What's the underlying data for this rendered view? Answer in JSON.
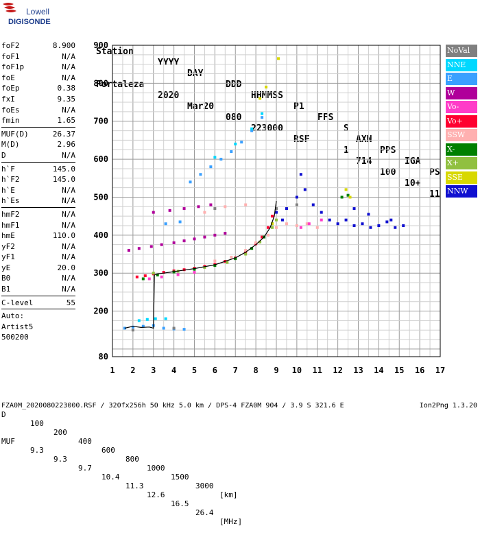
{
  "logo": {
    "line1": "Lowell",
    "line2": "DIGISONDE"
  },
  "header": {
    "labels": [
      "Station",
      "YYYY",
      "DAY",
      "DDD",
      "HHMMSS",
      "P1",
      "FFS",
      "S",
      "AXN",
      "PPS",
      "IGA",
      "PS"
    ],
    "values": [
      "Fortaleza",
      "2020",
      "Mar20",
      "080",
      "223000",
      "RSF",
      "1",
      "714",
      "100",
      "10+",
      "11"
    ]
  },
  "params": {
    "group1": [
      {
        "label": "foF2",
        "value": "8.900"
      },
      {
        "label": "foF1",
        "value": "N/A"
      },
      {
        "label": "foF1p",
        "value": "N/A"
      },
      {
        "label": "foE",
        "value": "N/A"
      },
      {
        "label": "foEp",
        "value": "0.38"
      },
      {
        "label": "fxI",
        "value": "9.35"
      },
      {
        "label": "foEs",
        "value": "N/A"
      },
      {
        "label": "fmin",
        "value": "1.65"
      }
    ],
    "group2": [
      {
        "label": "MUF(D)",
        "value": "26.37"
      },
      {
        "label": "M(D)",
        "value": "2.96"
      },
      {
        "label": "D",
        "value": "N/A"
      }
    ],
    "group3": [
      {
        "label": "h`F",
        "value": "145.0"
      },
      {
        "label": "h`F2",
        "value": "145.0"
      },
      {
        "label": "h`E",
        "value": "N/A"
      },
      {
        "label": "h`Es",
        "value": "N/A"
      }
    ],
    "group4": [
      {
        "label": "hmF2",
        "value": "N/A"
      },
      {
        "label": "hmF1",
        "value": "N/A"
      },
      {
        "label": "hmE",
        "value": "110.0"
      },
      {
        "label": "yF2",
        "value": "N/A"
      },
      {
        "label": "yF1",
        "value": "N/A"
      },
      {
        "label": "yE",
        "value": "20.0"
      },
      {
        "label": "B0",
        "value": "N/A"
      },
      {
        "label": "B1",
        "value": "N/A"
      }
    ],
    "clevel": {
      "label": "C-level",
      "value": "55"
    },
    "notes": [
      "Auto:",
      "Artist5",
      "500200"
    ]
  },
  "legend": [
    {
      "label": "NoVal",
      "color": "#808080"
    },
    {
      "label": "NNE",
      "color": "#00d8ff"
    },
    {
      "label": "E",
      "color": "#3aa0ff"
    },
    {
      "label": "W",
      "color": "#b0009a"
    },
    {
      "label": "Vo-",
      "color": "#ff3cc8"
    },
    {
      "label": "Vo+",
      "color": "#ff0030"
    },
    {
      "label": "SSW",
      "color": "#ffb0b0"
    },
    {
      "label": "X-",
      "color": "#008000"
    },
    {
      "label": "X+",
      "color": "#90c040"
    },
    {
      "label": "SSE",
      "color": "#d8d800"
    },
    {
      "label": "NNW",
      "color": "#1010d0"
    }
  ],
  "muf": {
    "d_label": "D",
    "d_values": [
      "100",
      "200",
      "400",
      "600",
      "800",
      "1000",
      "1500",
      "3000"
    ],
    "d_unit": "[km]",
    "muf_label": "MUF",
    "muf_values": [
      "9.3",
      "9.3",
      "9.7",
      "10.4",
      "11.3",
      "12.6",
      "16.5",
      "26.4"
    ],
    "muf_unit": "[MHz]"
  },
  "footer": {
    "left": "FZA0M_2020080223000.RSF / 320fx256h 50 kHz 5.0 km / DPS-4 FZA0M 904 / 3.9 S 321.6 E",
    "right": "Ion2Png 1.3.20"
  },
  "chart_data": {
    "type": "scatter",
    "xlim": [
      1,
      17
    ],
    "ylim": [
      80,
      900
    ],
    "x_ticks": [
      1,
      2,
      3,
      4,
      5,
      6,
      7,
      8,
      9,
      10,
      11,
      12,
      13,
      14,
      15,
      16,
      17
    ],
    "y_ticks": [
      80,
      200,
      300,
      400,
      500,
      600,
      700,
      800,
      900
    ],
    "grid": true,
    "series": [
      {
        "name": "Vo+",
        "color": "#ff0030",
        "x": [
          2.2,
          2.6,
          3.0,
          3.5,
          4.0,
          4.5,
          5.0,
          5.5,
          6.0,
          6.5,
          7.0,
          7.5,
          8.0,
          8.3,
          8.6,
          8.8
        ],
        "y": [
          290,
          293,
          298,
          302,
          306,
          309,
          313,
          318,
          323,
          331,
          340,
          355,
          377,
          395,
          420,
          450
        ]
      },
      {
        "name": "X-",
        "color": "#008000",
        "x": [
          2.5,
          3.2,
          4.0,
          5.0,
          6.0,
          7.0,
          7.8,
          8.4,
          8.8,
          12.2,
          12.5
        ],
        "y": [
          285,
          295,
          303,
          310,
          320,
          338,
          365,
          395,
          430,
          500,
          505
        ]
      },
      {
        "name": "X+",
        "color": "#90c040",
        "x": [
          3.0,
          4.2,
          5.5,
          6.6,
          7.5,
          8.2,
          8.8,
          9.0
        ],
        "y": [
          300,
          305,
          315,
          328,
          350,
          382,
          420,
          440
        ]
      },
      {
        "name": "W",
        "color": "#b0009a",
        "x": [
          1.8,
          2.3,
          2.9,
          3.4,
          4.0,
          4.5,
          5.0,
          5.5,
          6.0,
          6.5,
          3.0,
          3.8,
          4.5,
          5.2,
          5.8
        ],
        "y": [
          360,
          365,
          370,
          375,
          380,
          385,
          390,
          395,
          400,
          405,
          460,
          465,
          470,
          475,
          480
        ]
      },
      {
        "name": "E",
        "color": "#3aa0ff",
        "x": [
          1.6,
          2.0,
          2.5,
          3.0,
          3.5,
          4.0,
          4.5,
          4.8,
          5.3,
          5.8,
          6.3,
          6.8,
          7.3,
          7.8,
          8.3,
          3.6,
          4.3
        ],
        "y": [
          155,
          158,
          160,
          162,
          155,
          153,
          152,
          540,
          560,
          580,
          600,
          620,
          645,
          675,
          710,
          430,
          435
        ]
      },
      {
        "name": "NNE",
        "color": "#00d8ff",
        "x": [
          2.3,
          2.7,
          3.1,
          3.6,
          6.0,
          7.0,
          7.8,
          8.3
        ],
        "y": [
          175,
          178,
          180,
          180,
          605,
          640,
          680,
          720
        ]
      },
      {
        "name": "SSW",
        "color": "#ffb0b0",
        "x": [
          6.0,
          6.8,
          7.5,
          8.0,
          8.6,
          9.0,
          9.5,
          10.0,
          10.5,
          11.0,
          5.5,
          6.5,
          7.5
        ],
        "y": [
          332,
          342,
          360,
          380,
          400,
          420,
          430,
          425,
          430,
          420,
          460,
          475,
          480
        ]
      },
      {
        "name": "SSE",
        "color": "#d8d800",
        "x": [
          8.8,
          12.4,
          12.6,
          9.1,
          8.5,
          8.2
        ],
        "y": [
          430,
          520,
          500,
          865,
          790,
          760
        ]
      },
      {
        "name": "Vo-",
        "color": "#ff3cc8",
        "x": [
          2.8,
          3.4,
          4.2,
          5.0,
          10.2,
          10.6,
          11.2
        ],
        "y": [
          285,
          290,
          296,
          302,
          420,
          430,
          440
        ]
      },
      {
        "name": "NNW",
        "color": "#1010d0",
        "x": [
          9.0,
          9.5,
          10.0,
          10.4,
          10.8,
          11.2,
          11.6,
          12.0,
          12.4,
          12.8,
          13.2,
          13.6,
          14.0,
          14.4,
          14.8,
          15.2,
          9.3,
          10.2,
          12.8,
          13.5,
          14.6
        ],
        "y": [
          460,
          470,
          500,
          520,
          480,
          460,
          440,
          430,
          440,
          425,
          430,
          420,
          425,
          435,
          420,
          425,
          440,
          560,
          470,
          455,
          440
        ]
      },
      {
        "name": "NoVal",
        "color": "#808080",
        "x": [
          2.0,
          4.0,
          6.0,
          9.0,
          10.0
        ],
        "y": [
          150,
          155,
          470,
          470,
          480
        ]
      }
    ],
    "trace": {
      "x": [
        1.6,
        2.0,
        2.4,
        2.8,
        3.0,
        3.05,
        3.2,
        3.5,
        4.0,
        5.0,
        6.0,
        7.0,
        7.5,
        8.0,
        8.4,
        8.7,
        8.9,
        9.0
      ],
      "y": [
        155,
        160,
        157,
        158,
        155,
        295,
        298,
        300,
        304,
        312,
        322,
        340,
        355,
        375,
        395,
        420,
        450,
        490
      ]
    }
  }
}
